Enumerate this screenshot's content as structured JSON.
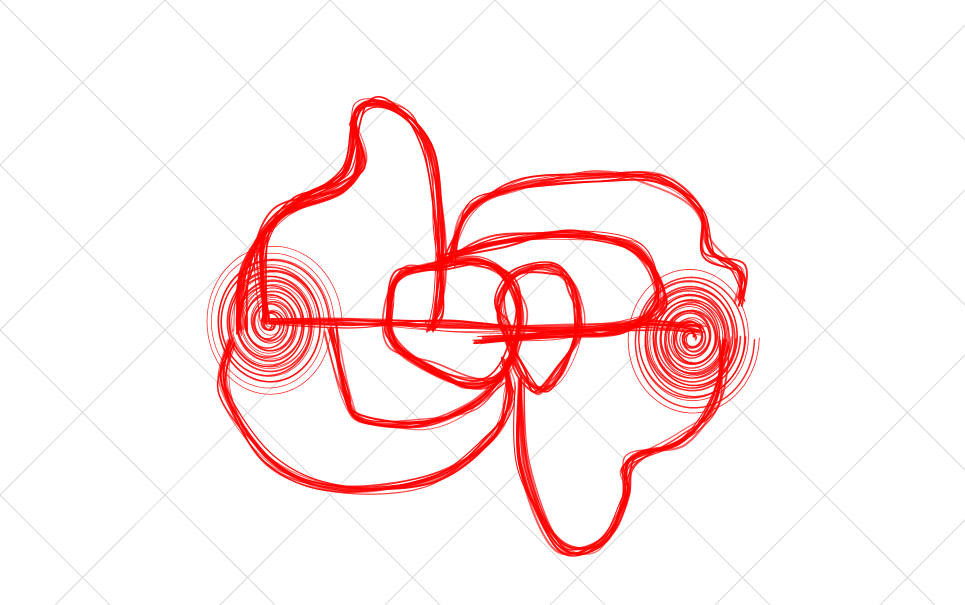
{
  "background_color": "#ffffff",
  "grid_color": "#d9d9d9",
  "curve_color": "#ff0000",
  "subject": "attractor-curve"
}
